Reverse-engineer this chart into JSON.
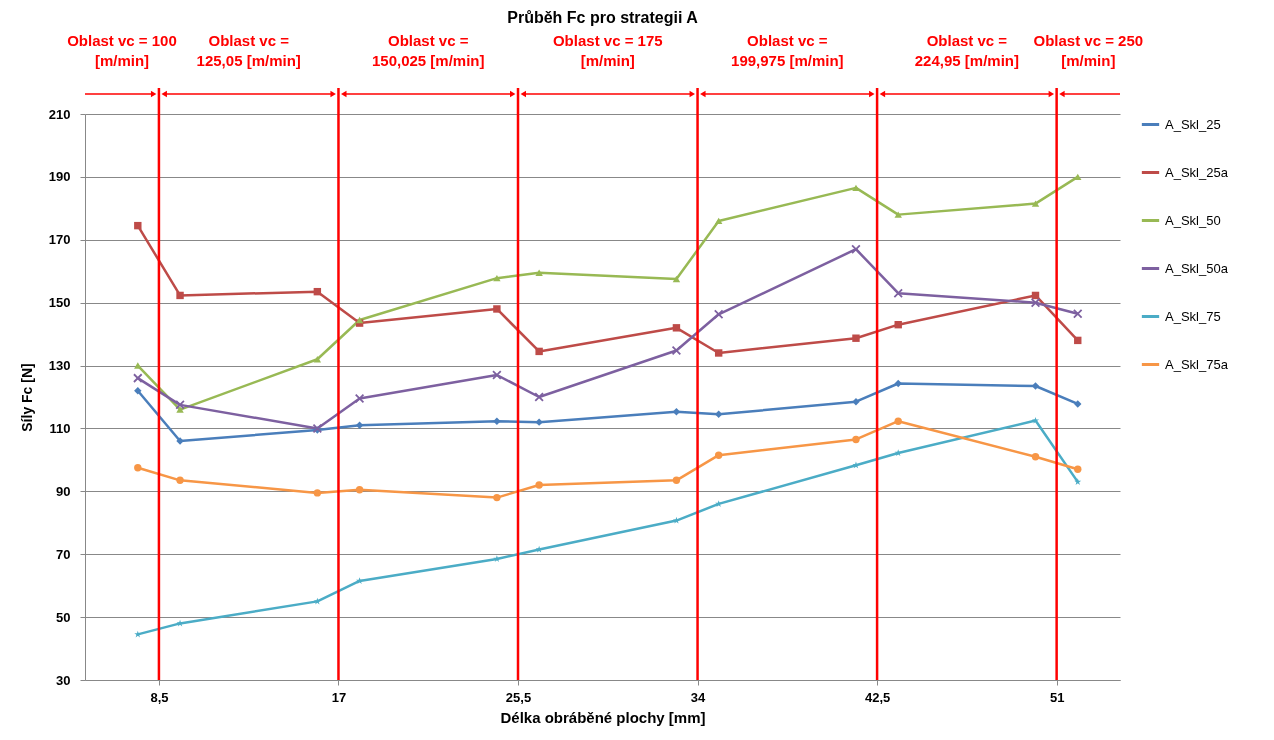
{
  "chart_data": {
    "type": "line",
    "title": "Průběh Fc pro strategii A",
    "xlabel": "Délka obráběné plochy [mm]",
    "ylabel": "Síly Fc [N]",
    "x": [
      7.5,
      9.5,
      16,
      18,
      24.5,
      26.5,
      33,
      35,
      41.5,
      43.5,
      50,
      52
    ],
    "series": [
      {
        "name": "A_Skl_25",
        "color": "#4a7ebb",
        "marker": "diamond",
        "values": [
          122,
          106,
          109.5,
          111,
          112.3,
          112,
          115.3,
          114.5,
          118.5,
          124.3,
          123.5,
          117.8
        ]
      },
      {
        "name": "A_Skl_25a",
        "color": "#be4b48",
        "marker": "square",
        "values": [
          174.5,
          152.3,
          153.5,
          143.5,
          148,
          134.5,
          142,
          134,
          138.7,
          143,
          152.3,
          138
        ]
      },
      {
        "name": "A_Skl_50",
        "color": "#98b954",
        "marker": "triangle",
        "values": [
          130,
          116,
          132,
          144.5,
          157.8,
          159.5,
          157.5,
          176,
          186.5,
          178,
          181.5,
          190
        ]
      },
      {
        "name": "A_Skl_50a",
        "color": "#7d60a0",
        "marker": "cross",
        "values": [
          126,
          117.5,
          110,
          119.5,
          127,
          120,
          134.8,
          146.3,
          167,
          153,
          150,
          146.5
        ]
      },
      {
        "name": "A_Skl_75",
        "color": "#4bacc6",
        "marker": "star",
        "values": [
          44.5,
          48,
          55,
          61.5,
          68.5,
          71.5,
          80.7,
          86,
          98.3,
          102.2,
          112.5,
          93
        ]
      },
      {
        "name": "A_Skl_75a",
        "color": "#f79646",
        "marker": "circle",
        "values": [
          97.5,
          93.5,
          89.5,
          90.5,
          88,
          92,
          93.5,
          101.5,
          106.5,
          112.3,
          101,
          97
        ]
      }
    ],
    "xlim": [
      5,
      54
    ],
    "xticks": [
      {
        "value": 8.5,
        "label": "8,5"
      },
      17,
      {
        "value": 25.5,
        "label": "25,5"
      },
      34,
      {
        "value": 42.5,
        "label": "42,5"
      },
      51
    ],
    "ylim": [
      30,
      210
    ],
    "yticks": [
      30,
      50,
      70,
      90,
      110,
      130,
      150,
      170,
      190,
      210
    ],
    "grid": "y",
    "legend": "right",
    "ref_lines": [
      {
        "axis": "x",
        "value": 8.5,
        "color": "#ff0000"
      },
      {
        "axis": "x",
        "value": 17,
        "color": "#ff0000"
      },
      {
        "axis": "x",
        "value": 25.5,
        "color": "#ff0000"
      },
      {
        "axis": "x",
        "value": 34,
        "color": "#ff0000"
      },
      {
        "axis": "x",
        "value": 42.5,
        "color": "#ff0000"
      },
      {
        "axis": "x",
        "value": 51,
        "color": "#ff0000"
      }
    ],
    "annotations": [
      "Oblast vc = 100 [m/min]",
      "Oblast vc = 125,05 [m/min]",
      "Oblast vc = 150,025 [m/min]",
      "Oblast vc = 175 [m/min]",
      "Oblast vc = 199,975 [m/min]",
      "Oblast vc = 224,95 [m/min]",
      "Oblast vc = 250 [m/min]"
    ]
  }
}
